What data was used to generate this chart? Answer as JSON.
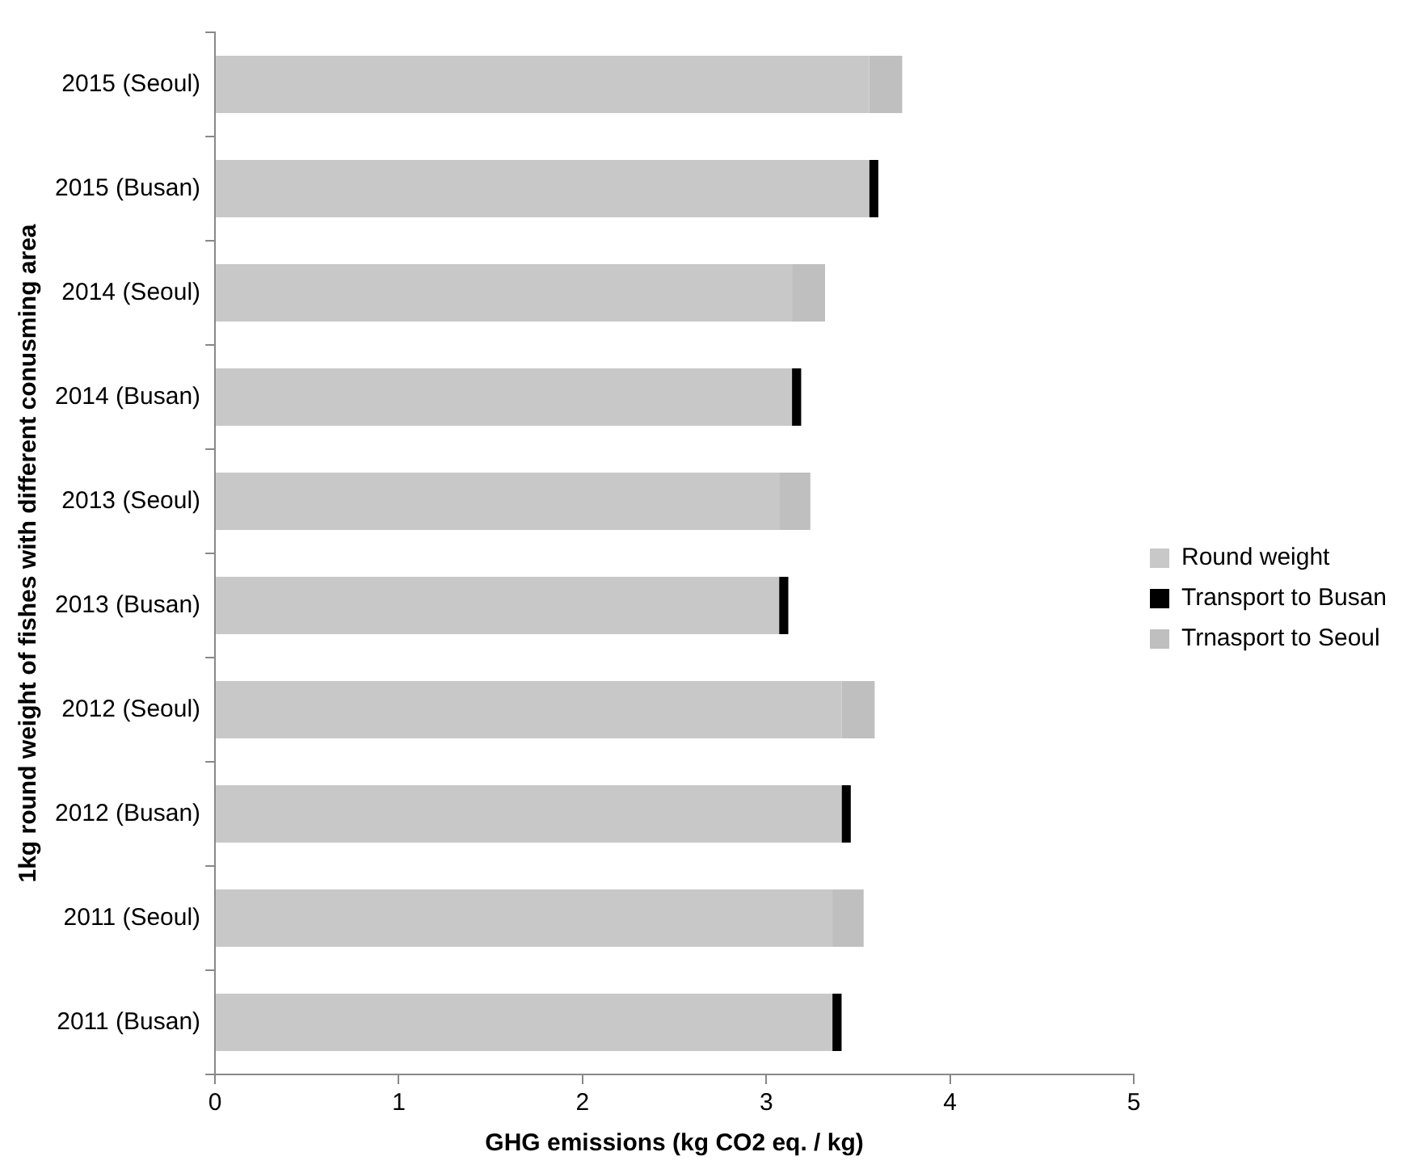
{
  "chart_data": {
    "type": "bar",
    "orientation": "horizontal",
    "stacked": true,
    "xlabel": "GHG emissions (kg CO2 eq. / kg)",
    "ylabel": "1kg round weight of fishes with different conusming area",
    "categories": [
      "2015 (Seoul)",
      "2015 (Busan)",
      "2014 (Seoul)",
      "2014 (Busan)",
      "2013 (Seoul)",
      "2013 (Busan)",
      "2012 (Seoul)",
      "2012 (Busan)",
      "2011 (Seoul)",
      "2011 (Busan)"
    ],
    "series": [
      {
        "name": "Round weight",
        "color": "#c8c8c8",
        "values": [
          3.56,
          3.56,
          3.14,
          3.14,
          3.07,
          3.07,
          3.41,
          3.41,
          3.36,
          3.36
        ]
      },
      {
        "name": "Transport to Busan",
        "color": "#000000",
        "values": [
          null,
          0.05,
          null,
          0.05,
          null,
          0.05,
          null,
          0.05,
          null,
          0.05
        ]
      },
      {
        "name": "Trnasport to Seoul",
        "color": "#bfbfbf",
        "values": [
          0.18,
          null,
          0.18,
          null,
          0.17,
          null,
          0.18,
          null,
          0.17,
          null
        ]
      }
    ],
    "xlim": [
      0,
      5
    ],
    "xticks": [
      0,
      1,
      2,
      3,
      4,
      5
    ],
    "grid": false,
    "legend": "right"
  }
}
